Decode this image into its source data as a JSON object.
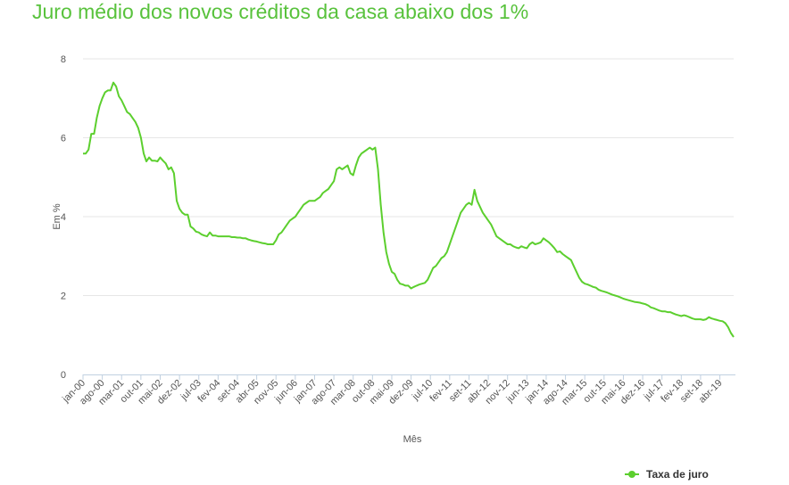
{
  "header": {
    "title": "Juro médio dos novos créditos da casa abaixo dos 1%"
  },
  "colors": {
    "title": "#58c23c",
    "series": "#5ccf2e",
    "grid": "#e6e6e6"
  },
  "chart_data": {
    "type": "line",
    "title": "Juro médio dos novos créditos da casa abaixo dos 1%",
    "xlabel": "Mês",
    "ylabel": "Em %",
    "ylim": [
      0,
      8
    ],
    "yticks": [
      0,
      2,
      4,
      6,
      8
    ],
    "grid": true,
    "legend_position": "bottom-right",
    "x_tick_labels": [
      "jan-00",
      "ago-00",
      "mar-01",
      "out-01",
      "mai-02",
      "dez-02",
      "jul-03",
      "fev-04",
      "set-04",
      "abr-05",
      "nov-05",
      "jun-06",
      "jan-07",
      "ago-07",
      "mar-08",
      "out-08",
      "mai-09",
      "dez-09",
      "jul-10",
      "fev-11",
      "set-11",
      "abr-12",
      "nov-12",
      "jun-13",
      "jan-14",
      "ago-14",
      "mar-15",
      "out-15",
      "mai-16",
      "dez-16",
      "jul-17",
      "fev-18",
      "set-18",
      "abr-19"
    ],
    "series": [
      {
        "name": "Taxa de juro",
        "color": "#5ccf2e",
        "points": [
          [
            "jan-00",
            5.6
          ],
          [
            "fev-00",
            5.6
          ],
          [
            "mar-00",
            5.7
          ],
          [
            "abr-00",
            6.1
          ],
          [
            "mai-00",
            6.1
          ],
          [
            "jun-00",
            6.5
          ],
          [
            "jul-00",
            6.8
          ],
          [
            "ago-00",
            7.0
          ],
          [
            "set-00",
            7.15
          ],
          [
            "out-00",
            7.2
          ],
          [
            "nov-00",
            7.2
          ],
          [
            "dez-00",
            7.4
          ],
          [
            "jan-01",
            7.3
          ],
          [
            "fev-01",
            7.05
          ],
          [
            "mar-01",
            6.95
          ],
          [
            "abr-01",
            6.8
          ],
          [
            "mai-01",
            6.65
          ],
          [
            "jun-01",
            6.6
          ],
          [
            "jul-01",
            6.5
          ],
          [
            "ago-01",
            6.4
          ],
          [
            "set-01",
            6.25
          ],
          [
            "out-01",
            6.0
          ],
          [
            "nov-01",
            5.6
          ],
          [
            "dez-01",
            5.4
          ],
          [
            "jan-02",
            5.5
          ],
          [
            "fev-02",
            5.42
          ],
          [
            "mar-02",
            5.42
          ],
          [
            "abr-02",
            5.4
          ],
          [
            "mai-02",
            5.5
          ],
          [
            "jun-02",
            5.42
          ],
          [
            "jul-02",
            5.35
          ],
          [
            "ago-02",
            5.2
          ],
          [
            "set-02",
            5.25
          ],
          [
            "out-02",
            5.1
          ],
          [
            "nov-02",
            4.4
          ],
          [
            "dez-02",
            4.2
          ],
          [
            "jan-03",
            4.1
          ],
          [
            "fev-03",
            4.05
          ],
          [
            "mar-03",
            4.05
          ],
          [
            "abr-03",
            3.75
          ],
          [
            "mai-03",
            3.7
          ],
          [
            "jun-03",
            3.62
          ],
          [
            "jul-03",
            3.6
          ],
          [
            "ago-03",
            3.55
          ],
          [
            "set-03",
            3.52
          ],
          [
            "out-03",
            3.5
          ],
          [
            "nov-03",
            3.6
          ],
          [
            "dez-03",
            3.52
          ],
          [
            "jan-04",
            3.52
          ],
          [
            "fev-04",
            3.5
          ],
          [
            "mar-04",
            3.5
          ],
          [
            "abr-04",
            3.5
          ],
          [
            "mai-04",
            3.5
          ],
          [
            "jun-04",
            3.5
          ],
          [
            "jul-04",
            3.48
          ],
          [
            "ago-04",
            3.48
          ],
          [
            "set-04",
            3.47
          ],
          [
            "out-04",
            3.47
          ],
          [
            "nov-04",
            3.45
          ],
          [
            "dez-04",
            3.45
          ],
          [
            "jan-05",
            3.42
          ],
          [
            "fev-05",
            3.4
          ],
          [
            "mar-05",
            3.38
          ],
          [
            "abr-05",
            3.37
          ],
          [
            "mai-05",
            3.35
          ],
          [
            "jun-05",
            3.33
          ],
          [
            "jul-05",
            3.32
          ],
          [
            "ago-05",
            3.3
          ],
          [
            "set-05",
            3.3
          ],
          [
            "out-05",
            3.3
          ],
          [
            "nov-05",
            3.4
          ],
          [
            "dez-05",
            3.55
          ],
          [
            "jan-06",
            3.6
          ],
          [
            "fev-06",
            3.7
          ],
          [
            "mar-06",
            3.8
          ],
          [
            "abr-06",
            3.9
          ],
          [
            "mai-06",
            3.95
          ],
          [
            "jun-06",
            4.0
          ],
          [
            "jul-06",
            4.1
          ],
          [
            "ago-06",
            4.2
          ],
          [
            "set-06",
            4.3
          ],
          [
            "out-06",
            4.35
          ],
          [
            "nov-06",
            4.4
          ],
          [
            "dez-06",
            4.4
          ],
          [
            "jan-07",
            4.4
          ],
          [
            "fev-07",
            4.45
          ],
          [
            "mar-07",
            4.5
          ],
          [
            "abr-07",
            4.6
          ],
          [
            "mai-07",
            4.65
          ],
          [
            "jun-07",
            4.7
          ],
          [
            "jul-07",
            4.8
          ],
          [
            "ago-07",
            4.9
          ],
          [
            "set-07",
            5.2
          ],
          [
            "out-07",
            5.25
          ],
          [
            "nov-07",
            5.2
          ],
          [
            "dez-07",
            5.25
          ],
          [
            "jan-08",
            5.3
          ],
          [
            "fev-08",
            5.1
          ],
          [
            "mar-08",
            5.05
          ],
          [
            "abr-08",
            5.3
          ],
          [
            "mai-08",
            5.5
          ],
          [
            "jun-08",
            5.6
          ],
          [
            "jul-08",
            5.65
          ],
          [
            "ago-08",
            5.7
          ],
          [
            "set-08",
            5.75
          ],
          [
            "out-08",
            5.7
          ],
          [
            "nov-08",
            5.75
          ],
          [
            "dez-08",
            5.2
          ],
          [
            "jan-09",
            4.3
          ],
          [
            "fev-09",
            3.6
          ],
          [
            "mar-09",
            3.1
          ],
          [
            "abr-09",
            2.8
          ],
          [
            "mai-09",
            2.6
          ],
          [
            "jun-09",
            2.55
          ],
          [
            "jul-09",
            2.4
          ],
          [
            "ago-09",
            2.3
          ],
          [
            "set-09",
            2.28
          ],
          [
            "out-09",
            2.25
          ],
          [
            "nov-09",
            2.25
          ],
          [
            "dez-09",
            2.18
          ],
          [
            "jan-10",
            2.22
          ],
          [
            "fev-10",
            2.25
          ],
          [
            "mar-10",
            2.28
          ],
          [
            "abr-10",
            2.3
          ],
          [
            "mai-10",
            2.32
          ],
          [
            "jun-10",
            2.4
          ],
          [
            "jul-10",
            2.55
          ],
          [
            "ago-10",
            2.7
          ],
          [
            "set-10",
            2.75
          ],
          [
            "out-10",
            2.85
          ],
          [
            "nov-10",
            2.95
          ],
          [
            "dez-10",
            3.0
          ],
          [
            "jan-11",
            3.1
          ],
          [
            "fev-11",
            3.3
          ],
          [
            "mar-11",
            3.5
          ],
          [
            "abr-11",
            3.7
          ],
          [
            "mai-11",
            3.9
          ],
          [
            "jun-11",
            4.1
          ],
          [
            "jul-11",
            4.2
          ],
          [
            "ago-11",
            4.3
          ],
          [
            "set-11",
            4.35
          ],
          [
            "out-11",
            4.3
          ],
          [
            "nov-11",
            4.68
          ],
          [
            "dez-11",
            4.4
          ],
          [
            "jan-12",
            4.25
          ],
          [
            "fev-12",
            4.1
          ],
          [
            "mar-12",
            4.0
          ],
          [
            "abr-12",
            3.9
          ],
          [
            "mai-12",
            3.8
          ],
          [
            "jun-12",
            3.65
          ],
          [
            "jul-12",
            3.5
          ],
          [
            "ago-12",
            3.45
          ],
          [
            "set-12",
            3.4
          ],
          [
            "out-12",
            3.35
          ],
          [
            "nov-12",
            3.3
          ],
          [
            "dez-12",
            3.3
          ],
          [
            "jan-13",
            3.25
          ],
          [
            "fev-13",
            3.22
          ],
          [
            "mar-13",
            3.2
          ],
          [
            "abr-13",
            3.25
          ],
          [
            "mai-13",
            3.22
          ],
          [
            "jun-13",
            3.2
          ],
          [
            "jul-13",
            3.3
          ],
          [
            "ago-13",
            3.35
          ],
          [
            "set-13",
            3.3
          ],
          [
            "out-13",
            3.32
          ],
          [
            "nov-13",
            3.35
          ],
          [
            "dez-13",
            3.45
          ],
          [
            "jan-14",
            3.4
          ],
          [
            "fev-14",
            3.35
          ],
          [
            "mar-14",
            3.28
          ],
          [
            "abr-14",
            3.2
          ],
          [
            "mai-14",
            3.1
          ],
          [
            "jun-14",
            3.12
          ],
          [
            "jul-14",
            3.05
          ],
          [
            "ago-14",
            3.0
          ],
          [
            "set-14",
            2.95
          ],
          [
            "out-14",
            2.9
          ],
          [
            "nov-14",
            2.75
          ],
          [
            "dez-14",
            2.6
          ],
          [
            "jan-15",
            2.45
          ],
          [
            "fev-15",
            2.35
          ],
          [
            "mar-15",
            2.3
          ],
          [
            "abr-15",
            2.28
          ],
          [
            "mai-15",
            2.25
          ],
          [
            "jun-15",
            2.22
          ],
          [
            "jul-15",
            2.2
          ],
          [
            "ago-15",
            2.15
          ],
          [
            "set-15",
            2.12
          ],
          [
            "out-15",
            2.1
          ],
          [
            "nov-15",
            2.08
          ],
          [
            "dez-15",
            2.05
          ],
          [
            "jan-16",
            2.02
          ],
          [
            "fev-16",
            2.0
          ],
          [
            "mar-16",
            1.98
          ],
          [
            "abr-16",
            1.95
          ],
          [
            "mai-16",
            1.92
          ],
          [
            "jun-16",
            1.9
          ],
          [
            "jul-16",
            1.88
          ],
          [
            "ago-16",
            1.86
          ],
          [
            "set-16",
            1.84
          ],
          [
            "out-16",
            1.83
          ],
          [
            "nov-16",
            1.82
          ],
          [
            "dez-16",
            1.8
          ],
          [
            "jan-17",
            1.78
          ],
          [
            "fev-17",
            1.75
          ],
          [
            "mar-17",
            1.7
          ],
          [
            "abr-17",
            1.68
          ],
          [
            "mai-17",
            1.65
          ],
          [
            "jun-17",
            1.62
          ],
          [
            "jul-17",
            1.6
          ],
          [
            "ago-17",
            1.6
          ],
          [
            "set-17",
            1.58
          ],
          [
            "out-17",
            1.58
          ],
          [
            "nov-17",
            1.55
          ],
          [
            "dez-17",
            1.52
          ],
          [
            "jan-18",
            1.5
          ],
          [
            "fev-18",
            1.48
          ],
          [
            "mar-18",
            1.5
          ],
          [
            "abr-18",
            1.48
          ],
          [
            "mai-18",
            1.45
          ],
          [
            "jun-18",
            1.42
          ],
          [
            "jul-18",
            1.4
          ],
          [
            "ago-18",
            1.4
          ],
          [
            "set-18",
            1.4
          ],
          [
            "out-18",
            1.38
          ],
          [
            "nov-18",
            1.4
          ],
          [
            "dez-18",
            1.45
          ],
          [
            "jan-19",
            1.42
          ],
          [
            "fev-19",
            1.4
          ],
          [
            "mar-19",
            1.38
          ],
          [
            "abr-19",
            1.36
          ],
          [
            "mai-19",
            1.35
          ],
          [
            "jun-19",
            1.3
          ],
          [
            "jul-19",
            1.2
          ],
          [
            "ago-19",
            1.05
          ],
          [
            "set-19",
            0.95
          ]
        ]
      }
    ]
  }
}
